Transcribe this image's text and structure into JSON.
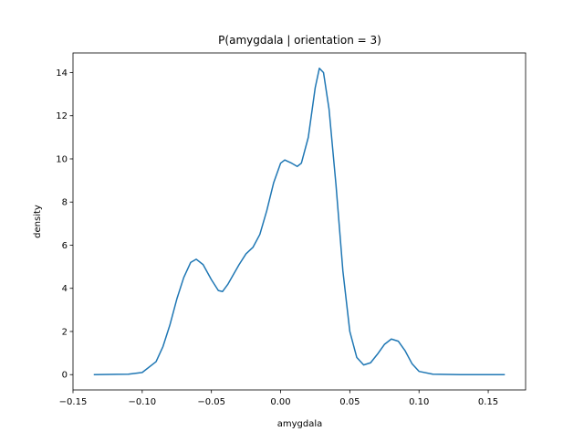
{
  "chart_data": {
    "type": "line",
    "title": "P(amygdala | orientation = 3)",
    "xlabel": "amygdala",
    "ylabel": "density",
    "x": [
      -0.135,
      -0.11,
      -0.1,
      -0.09,
      -0.085,
      -0.08,
      -0.075,
      -0.07,
      -0.065,
      -0.061,
      -0.056,
      -0.05,
      -0.045,
      -0.042,
      -0.038,
      -0.03,
      -0.025,
      -0.02,
      -0.015,
      -0.01,
      -0.005,
      0.0,
      0.003,
      0.008,
      0.012,
      0.015,
      0.02,
      0.025,
      0.028,
      0.031,
      0.035,
      0.04,
      0.045,
      0.05,
      0.055,
      0.06,
      0.065,
      0.07,
      0.075,
      0.08,
      0.085,
      0.09,
      0.095,
      0.1,
      0.11,
      0.13,
      0.162
    ],
    "values": [
      0,
      0.02,
      0.1,
      0.6,
      1.3,
      2.3,
      3.5,
      4.5,
      5.2,
      5.35,
      5.1,
      4.4,
      3.9,
      3.85,
      4.2,
      5.1,
      5.6,
      5.9,
      6.5,
      7.6,
      8.9,
      9.8,
      9.95,
      9.8,
      9.65,
      9.8,
      11.0,
      13.3,
      14.2,
      14.0,
      12.3,
      8.8,
      4.8,
      2.0,
      0.8,
      0.45,
      0.55,
      0.95,
      1.4,
      1.65,
      1.55,
      1.1,
      0.5,
      0.15,
      0.02,
      0,
      0
    ],
    "color": "#1f77b4",
    "xlim": [
      -0.15,
      0.177
    ],
    "ylim": [
      -0.71,
      14.91
    ],
    "xticks": [
      {
        "value": -0.15,
        "label": "−0.15"
      },
      {
        "value": -0.1,
        "label": "−0.10"
      },
      {
        "value": -0.05,
        "label": "−0.05"
      },
      {
        "value": 0,
        "label": "0.00"
      },
      {
        "value": 0.05,
        "label": "0.05"
      },
      {
        "value": 0.1,
        "label": "0.10"
      },
      {
        "value": 0.15,
        "label": "0.15"
      }
    ],
    "yticks": [
      0,
      2,
      4,
      6,
      8,
      10,
      12,
      14
    ]
  }
}
